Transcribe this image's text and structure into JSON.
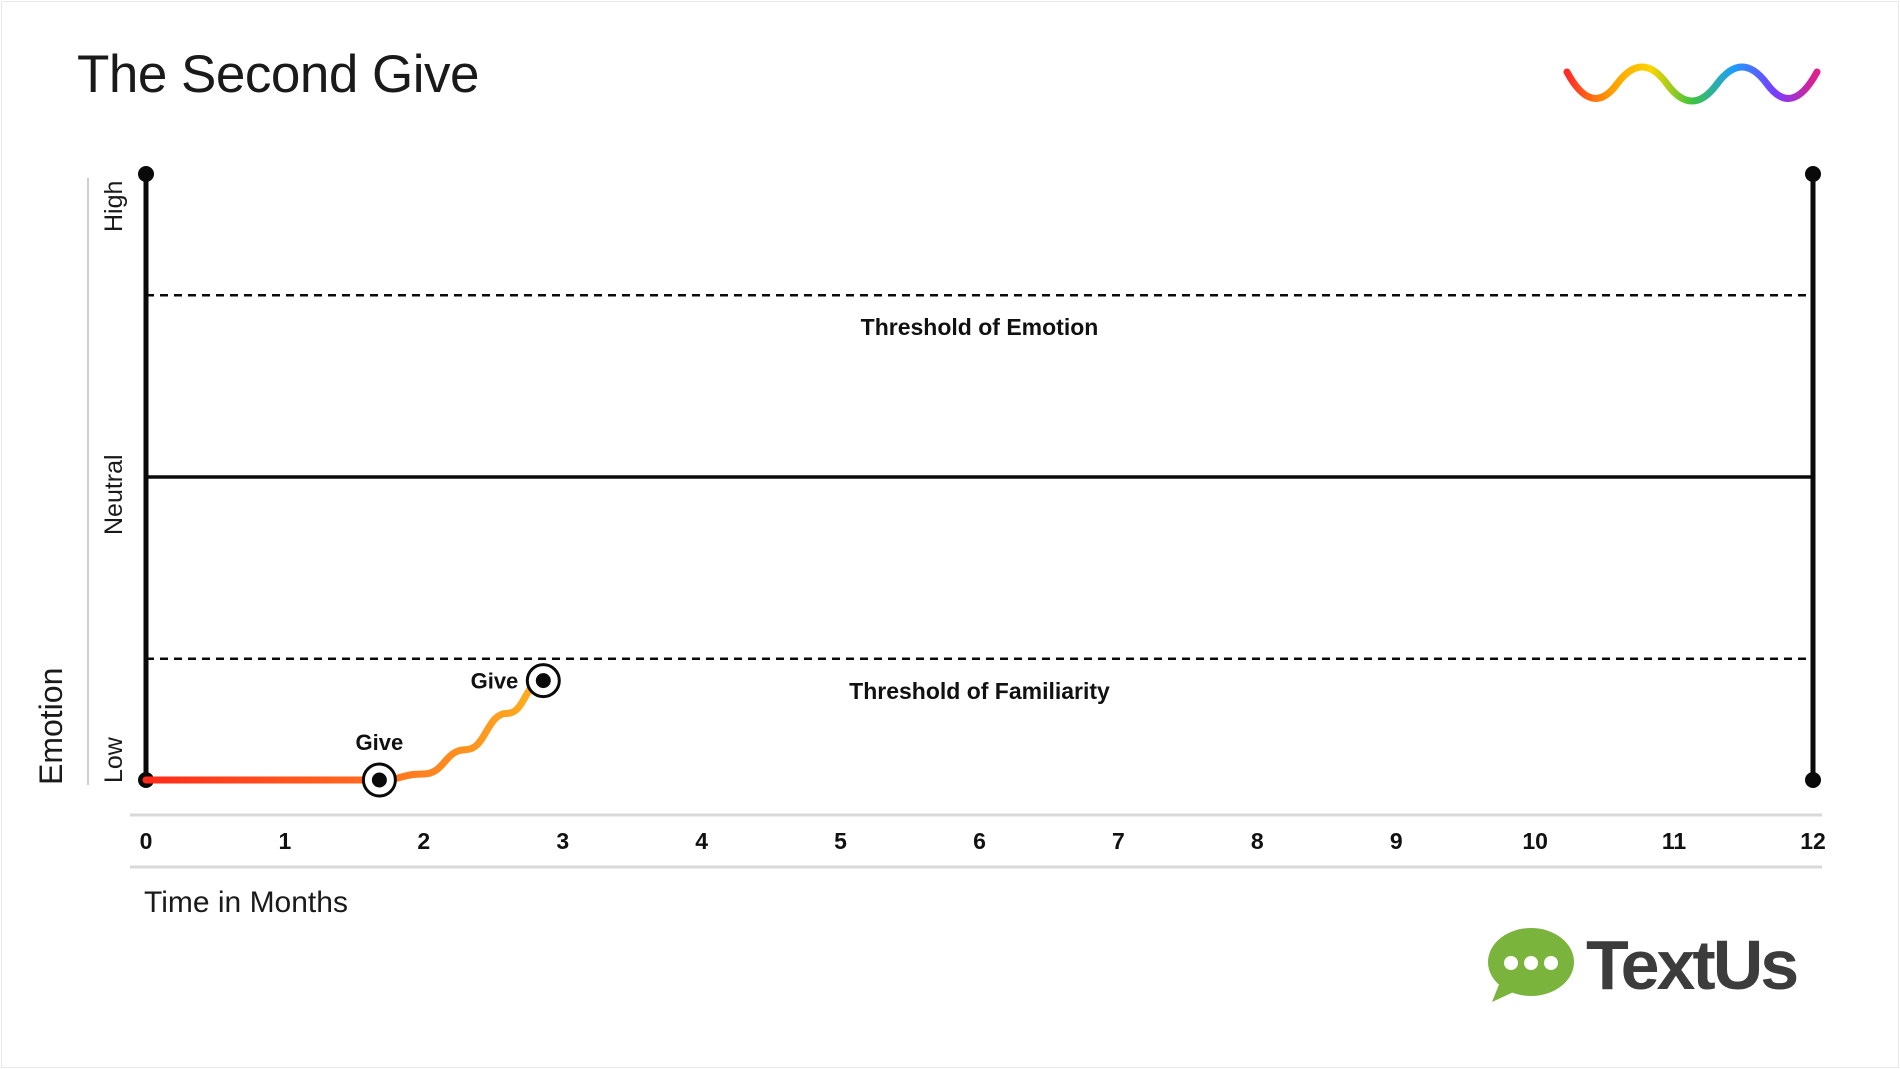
{
  "title": "The Second Give",
  "brand": {
    "name": "TextUs",
    "bubble_color": "#7ab43c",
    "text_color": "#3c3c3c",
    "wave_colors": [
      "#ff2a2a",
      "#ff9a00",
      "#ffd400",
      "#3dc43d",
      "#1e9cff",
      "#7a3cff",
      "#e0208a"
    ]
  },
  "chart_data": {
    "type": "line",
    "title": "The Second Give",
    "xlabel": "Time in Months",
    "ylabel": "Emotion",
    "xlim": [
      0,
      12
    ],
    "x_ticks": [
      "0",
      "1",
      "2",
      "3",
      "4",
      "5",
      "6",
      "7",
      "8",
      "9",
      "10",
      "11",
      "12"
    ],
    "ylim": [
      0,
      1
    ],
    "y_levels": [
      {
        "label": "Low",
        "value": 0
      },
      {
        "label": "Neutral",
        "value": 0.5
      },
      {
        "label": "High",
        "value": 1
      }
    ],
    "reference_lines": [
      {
        "label": "Threshold of Emotion",
        "value": 0.8,
        "style": "dashed"
      },
      {
        "label": "Neutral",
        "value": 0.5,
        "style": "solid"
      },
      {
        "label": "Threshold of Familiarity",
        "value": 0.2,
        "style": "dashed"
      }
    ],
    "series": [
      {
        "gradient": [
          "#ff2a1a",
          "#ff6a1f",
          "#ffb21f"
        ],
        "points": [
          {
            "x": 0,
            "y": 0
          },
          {
            "x": 1.68,
            "y": 0
          },
          {
            "x": 2.0,
            "y": 0.01
          },
          {
            "x": 2.3,
            "y": 0.05
          },
          {
            "x": 2.6,
            "y": 0.11
          },
          {
            "x": 2.86,
            "y": 0.164
          }
        ]
      }
    ],
    "annotations": [
      {
        "label": "Give",
        "x": 1.68,
        "y": 0
      },
      {
        "label": "Give",
        "x": 2.86,
        "y": 0.164
      }
    ],
    "grid": false,
    "legend": "none"
  }
}
